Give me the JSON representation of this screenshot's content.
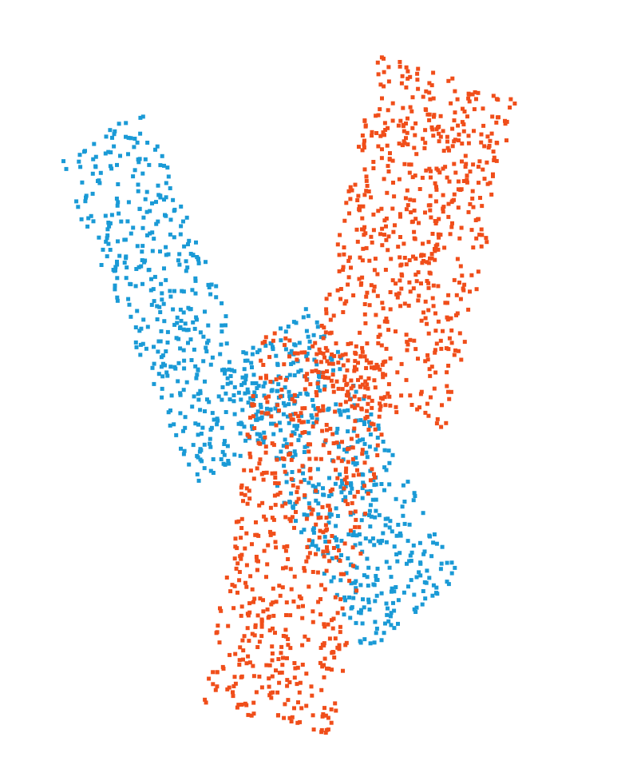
{
  "chart_data": {
    "type": "scatter",
    "title": "",
    "xlabel": "",
    "ylabel": "",
    "grid": false,
    "axes_visible": false,
    "legend": "none",
    "xlim": [
      0,
      100
    ],
    "ylim": [
      0,
      100
    ],
    "marker": "square",
    "series": [
      {
        "color": "#1a9ad6",
        "regions": [
          {
            "shape": "band",
            "start": [
              14,
              84
            ],
            "end": [
              37,
              41
            ],
            "width": 16,
            "count": 440
          },
          {
            "shape": "band",
            "start": [
              41,
              57
            ],
            "end": [
              66,
              20
            ],
            "width": 19,
            "count": 520
          }
        ]
      },
      {
        "color": "#f04e1a",
        "regions": [
          {
            "shape": "band",
            "start": [
              72,
              92
            ],
            "end": [
              60,
              48
            ],
            "width": 24,
            "count": 640
          },
          {
            "shape": "band",
            "start": [
              52,
              56
            ],
            "end": [
              42,
              6
            ],
            "width": 22,
            "count": 620
          }
        ]
      }
    ]
  }
}
